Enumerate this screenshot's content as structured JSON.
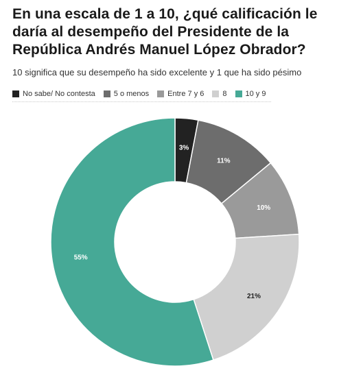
{
  "title": "En una escala de 1 a 10, ¿qué calificación le daría al desempeño del Presidente de la República Andrés Manuel López Obrador?",
  "subtitle": "10 significa que su desempeño ha sido excelente y 1 que ha sido pésimo",
  "chart_data": {
    "type": "pie",
    "title": "En una escala de 1 a 10, ¿qué calificación le daría al desempeño del Presidente de la República Andrés Manuel López Obrador?",
    "subtitle": "10 significa que su desempeño ha sido excelente y 1 que ha sido pésimo",
    "donut": true,
    "legend_position": "top-left",
    "categories": [
      "No sabe/ No contesta",
      "5 o menos",
      "Entre 7 y 6",
      "8",
      "10 y 9"
    ],
    "values": [
      3,
      11,
      10,
      21,
      55
    ],
    "data_labels": [
      "3%",
      "11%",
      "10%",
      "21%",
      "55%"
    ],
    "colors": [
      "#222222",
      "#6d6d6d",
      "#9a9a9a",
      "#d0d0d0",
      "#46a996"
    ],
    "label_colors": [
      "#ffffff",
      "#ffffff",
      "#ffffff",
      "#222222",
      "#ffffff"
    ]
  }
}
